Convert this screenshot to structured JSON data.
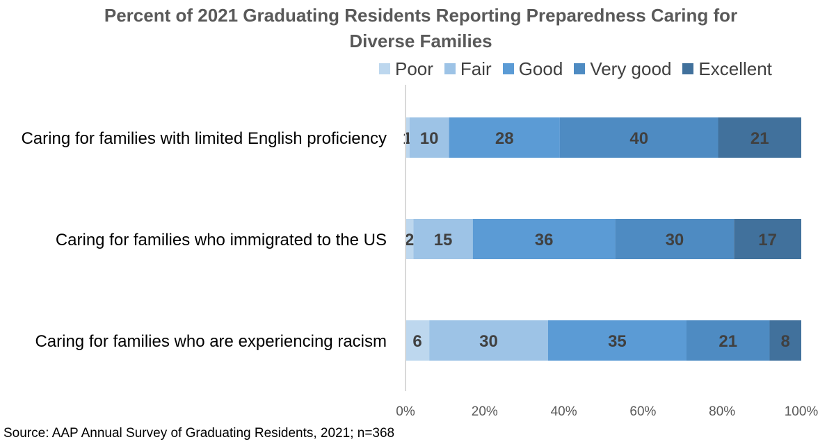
{
  "chart_data": {
    "type": "bar",
    "orientation": "horizontal",
    "stacked": true,
    "title": "Percent of 2021 Graduating Residents Reporting Preparedness Caring for Diverse Families",
    "title_lines": [
      "Percent of 2021 Graduating Residents Reporting Preparedness Caring for",
      "Diverse Families"
    ],
    "categories": [
      "Caring for families with limited English proficiency",
      "Caring for families who immigrated to the US",
      "Caring for families who are experiencing racism"
    ],
    "series": [
      {
        "name": "Poor",
        "values": [
          1,
          2,
          6
        ],
        "color": "#bdd7ee"
      },
      {
        "name": "Fair",
        "values": [
          10,
          15,
          30
        ],
        "color": "#9dc3e6"
      },
      {
        "name": "Good",
        "values": [
          28,
          36,
          35
        ],
        "color": "#5b9bd5"
      },
      {
        "name": "Very good",
        "values": [
          40,
          30,
          21
        ],
        "color": "#4e8bc2"
      },
      {
        "name": "Excellent",
        "values": [
          21,
          17,
          8
        ],
        "color": "#41719c"
      }
    ],
    "xlim": [
      0,
      100
    ],
    "xticks": [
      "0%",
      "20%",
      "40%",
      "60%",
      "80%",
      "100%"
    ],
    "grid": false,
    "legend_position": "top-right",
    "data_labels": true
  },
  "source": "Source: AAP Annual Survey of Graduating Residents, 2021; n=368"
}
